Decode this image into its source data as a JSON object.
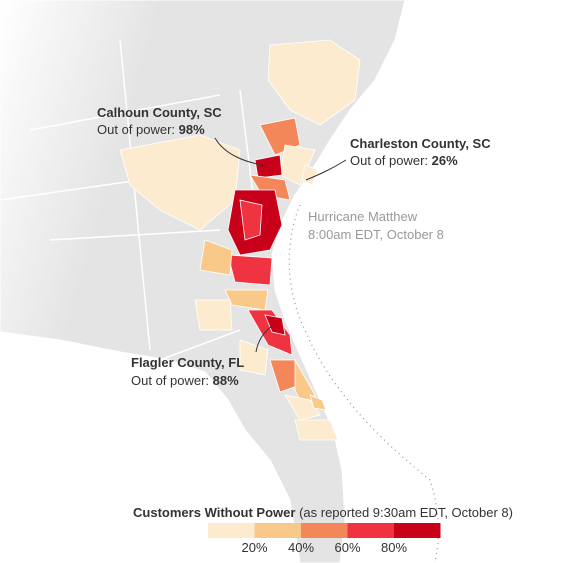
{
  "annotations": [
    {
      "title": "Calhoun County, SC",
      "label": "Out of power:",
      "value": "98%"
    },
    {
      "title": "Charleston County, SC",
      "label": "Out of power:",
      "value": "26%"
    },
    {
      "title": "Flagler County, FL",
      "label": "Out of power:",
      "value": "88%"
    }
  ],
  "storm": {
    "name": "Hurricane Matthew",
    "time": "8:00am EDT, October 8"
  },
  "legend": {
    "title": "Customers Without Power",
    "note": "(as reported 9:30am EDT, October 8)",
    "colors": [
      "#fdebd0",
      "#f9c98a",
      "#f4875a",
      "#ef3341",
      "#c8001a"
    ],
    "ticks": [
      "20%",
      "40%",
      "60%",
      "80%"
    ]
  }
}
